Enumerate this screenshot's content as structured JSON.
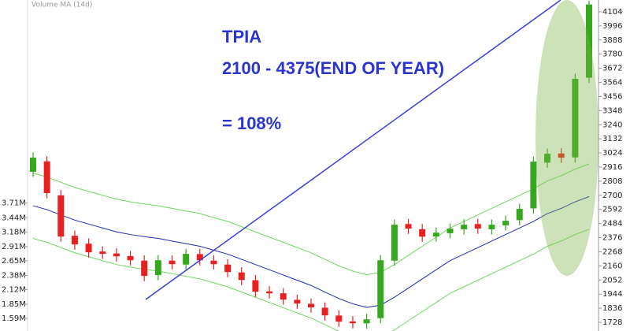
{
  "chart_data": {
    "type": "candlestick",
    "volume_label": "Volume MA (14d)",
    "annotations": [
      "TPIA",
      "2100 - 4375(END OF YEAR)",
      "= 108%"
    ],
    "open": [
      2880,
      2960,
      2700,
      2390,
      2330,
      2270,
      2255,
      2235,
      2200,
      2090,
      2200,
      2170,
      2250,
      2200,
      2170,
      2110,
      2050,
      1965,
      1950,
      1900,
      1870,
      1840,
      1780,
      1735,
      1720,
      1760,
      2200,
      2480,
      2440,
      2385,
      2410,
      2440,
      2480,
      2440,
      2470,
      2510,
      2600,
      2950,
      3020,
      2990,
      3600
    ],
    "high": [
      3028,
      3000,
      2740,
      2430,
      2370,
      2310,
      2295,
      2275,
      2240,
      2243,
      2240,
      2292,
      2290,
      2240,
      2210,
      2150,
      2090,
      2005,
      1990,
      1940,
      1910,
      1880,
      1820,
      1775,
      1791,
      2243,
      2515,
      2520,
      2480,
      2454,
      2485,
      2515,
      2520,
      2515,
      2545,
      2636,
      2998,
      3058,
      3060,
      3631,
      4190
    ],
    "low": [
      2840,
      2677,
      2344,
      2284,
      2224,
      2212,
      2193,
      2163,
      2043,
      2050,
      2133,
      2130,
      2163,
      2133,
      2073,
      2012,
      1922,
      1910,
      1862,
      1832,
      1802,
      1741,
      1693,
      1681,
      1680,
      1720,
      2160,
      2405,
      2344,
      2345,
      2370,
      2400,
      2405,
      2400,
      2430,
      2470,
      2560,
      2910,
      2948,
      2950,
      3560
    ],
    "close": [
      2988,
      2717,
      2384,
      2324,
      2264,
      2252,
      2233,
      2203,
      2083,
      2203,
      2173,
      2252,
      2203,
      2173,
      2113,
      2052,
      1962,
      1950,
      1902,
      1872,
      1842,
      1781,
      1733,
      1721,
      1751,
      2203,
      2475,
      2445,
      2384,
      2414,
      2445,
      2475,
      2445,
      2475,
      2505,
      2596,
      2958,
      3018,
      2988,
      3591,
      4160
    ],
    "up_color": "#35a81e",
    "down_color": "#e82020",
    "series": [
      {
        "color": "#1a2bb8",
        "values": [
          2620,
          2590,
          2550,
          2510,
          2480,
          2450,
          2420,
          2400,
          2384,
          2370,
          2350,
          2330,
          2310,
          2280,
          2250,
          2210,
          2170,
          2130,
          2090,
          2050,
          2010,
          1960,
          1910,
          1870,
          1842,
          1860,
          1920,
          1990,
          2060,
          2130,
          2200,
          2250,
          2300,
          2350,
          2400,
          2450,
          2500,
          2560,
          2600,
          2650,
          2690
        ]
      },
      {
        "color": "#6fd860",
        "values": [
          2870,
          2840,
          2800,
          2760,
          2730,
          2700,
          2670,
          2650,
          2634,
          2620,
          2600,
          2580,
          2560,
          2530,
          2500,
          2460,
          2420,
          2380,
          2340,
          2300,
          2260,
          2210,
          2160,
          2120,
          2092,
          2110,
          2170,
          2240,
          2310,
          2380,
          2450,
          2500,
          2550,
          2600,
          2650,
          2700,
          2750,
          2810,
          2850,
          2900,
          2940
        ]
      },
      {
        "color": "#6fd860",
        "values": [
          2370,
          2340,
          2300,
          2260,
          2230,
          2200,
          2170,
          2150,
          2134,
          2120,
          2100,
          2080,
          2060,
          2030,
          2000,
          1960,
          1920,
          1880,
          1840,
          1800,
          1760,
          1710,
          1660,
          1620,
          1592,
          1610,
          1670,
          1740,
          1810,
          1880,
          1950,
          2000,
          2050,
          2100,
          2150,
          2200,
          2250,
          2310,
          2350,
          2400,
          2440
        ]
      }
    ],
    "ylim": [
      1661.6,
      4194.5
    ],
    "yticks": [
      4104,
      3996,
      3888,
      3780,
      3672,
      3564,
      3456,
      3348,
      3240,
      3132,
      3024,
      2916,
      2808,
      2700,
      2592,
      2484,
      2376,
      2268,
      2160,
      2052,
      1944,
      1836,
      1728
    ],
    "y2lim": [
      1358000,
      7446000
    ],
    "y2ticks": [
      {
        "value": 3710000,
        "label": "3.71M"
      },
      {
        "value": 3440000,
        "label": "3.44M"
      },
      {
        "value": 3180000,
        "label": "3.18M"
      },
      {
        "value": 2910000,
        "label": "2.91M"
      },
      {
        "value": 2650000,
        "label": "2.65M"
      },
      {
        "value": 2380000,
        "label": "2.38M"
      },
      {
        "value": 2120000,
        "label": "2.12M"
      },
      {
        "value": 1850000,
        "label": "1.85M"
      },
      {
        "value": 1590000,
        "label": "1.59M"
      }
    ]
  }
}
